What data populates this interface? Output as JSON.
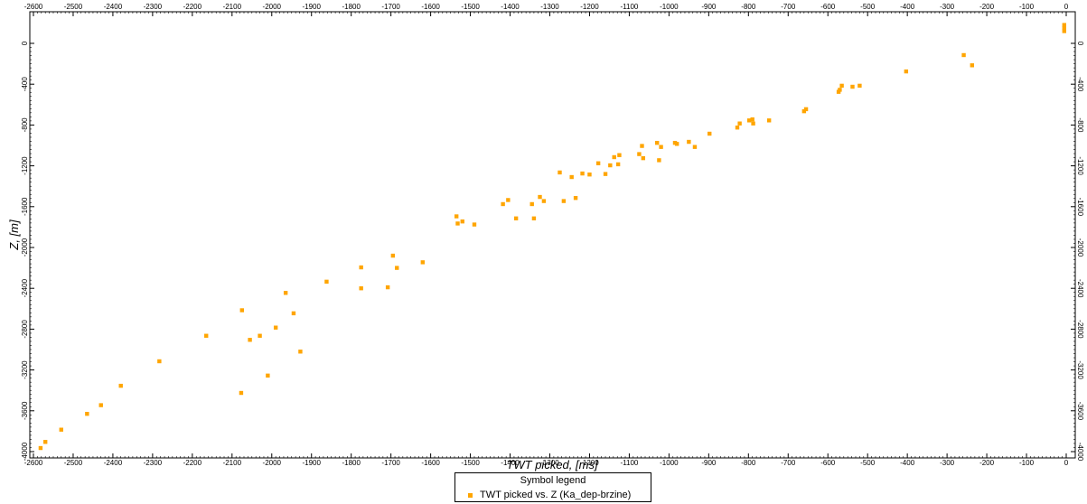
{
  "chart_data": {
    "type": "scatter",
    "xlabel": "TWT picked, [ms]",
    "ylabel": "Z, [m]",
    "xlim": [
      -2600,
      0
    ],
    "ylim": [
      0,
      -4000
    ],
    "x_ticks": [
      -2600,
      -2500,
      -2400,
      -2300,
      -2200,
      -2100,
      -2000,
      -1900,
      -1800,
      -1700,
      -1600,
      -1500,
      -1400,
      -1300,
      -1200,
      -1100,
      -1000,
      -900,
      -800,
      -700,
      -600,
      -500,
      -400,
      -300,
      -200,
      -100,
      0
    ],
    "y_ticks": [
      0,
      -400,
      -800,
      -1200,
      -1600,
      -2000,
      -2400,
      -2800,
      -3200,
      -3600,
      -4000
    ],
    "x_tick_labels": [
      "-2600",
      "-2500",
      "-2400",
      "-2300",
      "-2200",
      "-2100",
      "-2000",
      "-1900",
      "-1800",
      "-1700",
      "-1600",
      "-1500",
      "-1400",
      "-1300",
      "-1200",
      "-1100",
      "-1000",
      "-900",
      "-800",
      "-700",
      "-600",
      "-500",
      "-400",
      "-300",
      "-200",
      "-100",
      "0"
    ],
    "y_tick_labels": [
      "0",
      "-400",
      "-800",
      "-1200",
      "-1600",
      "-2000",
      "-2400",
      "-2800",
      "-3200",
      "-3600",
      "-4000"
    ],
    "marker_color": "#ffa500",
    "grid": false,
    "legend_title": "Symbol legend",
    "series": [
      {
        "name": "TWT picked vs. Z (Ka_dep-brzine)",
        "points": [
          [
            -2582,
            -3965
          ],
          [
            -2570,
            -3905
          ],
          [
            -2530,
            -3785
          ],
          [
            -2465,
            -3630
          ],
          [
            -2430,
            -3545
          ],
          [
            -2380,
            -3355
          ],
          [
            -2283,
            -3115
          ],
          [
            -2165,
            -2865
          ],
          [
            -2075,
            -2615
          ],
          [
            -2077,
            -3425
          ],
          [
            -2055,
            -2905
          ],
          [
            -2030,
            -2865
          ],
          [
            -2010,
            -3255
          ],
          [
            -1990,
            -2785
          ],
          [
            -1965,
            -2445
          ],
          [
            -1945,
            -2645
          ],
          [
            -1928,
            -3020
          ],
          [
            -1862,
            -2335
          ],
          [
            -1775,
            -2195
          ],
          [
            -1775,
            -2400
          ],
          [
            -1708,
            -2390
          ],
          [
            -1695,
            -2080
          ],
          [
            -1685,
            -2200
          ],
          [
            -1620,
            -2145
          ],
          [
            -1535,
            -1695
          ],
          [
            -1532,
            -1765
          ],
          [
            -1520,
            -1745
          ],
          [
            -1490,
            -1775
          ],
          [
            -1418,
            -1575
          ],
          [
            -1405,
            -1535
          ],
          [
            -1385,
            -1715
          ],
          [
            -1345,
            -1575
          ],
          [
            -1340,
            -1715
          ],
          [
            -1325,
            -1505
          ],
          [
            -1315,
            -1545
          ],
          [
            -1275,
            -1265
          ],
          [
            -1265,
            -1545
          ],
          [
            -1245,
            -1310
          ],
          [
            -1235,
            -1515
          ],
          [
            -1218,
            -1275
          ],
          [
            -1200,
            -1285
          ],
          [
            -1178,
            -1175
          ],
          [
            -1160,
            -1280
          ],
          [
            -1148,
            -1195
          ],
          [
            -1138,
            -1115
          ],
          [
            -1128,
            -1185
          ],
          [
            -1125,
            -1095
          ],
          [
            -1075,
            -1085
          ],
          [
            -1068,
            -1005
          ],
          [
            -1065,
            -1125
          ],
          [
            -1030,
            -975
          ],
          [
            -1025,
            -1145
          ],
          [
            -1020,
            -1015
          ],
          [
            -985,
            -975
          ],
          [
            -980,
            -985
          ],
          [
            -950,
            -965
          ],
          [
            -935,
            -1015
          ],
          [
            -898,
            -885
          ],
          [
            -828,
            -825
          ],
          [
            -822,
            -785
          ],
          [
            -798,
            -755
          ],
          [
            -790,
            -745
          ],
          [
            -788,
            -785
          ],
          [
            -748,
            -755
          ],
          [
            -660,
            -665
          ],
          [
            -655,
            -645
          ],
          [
            -573,
            -475
          ],
          [
            -570,
            -455
          ],
          [
            -565,
            -415
          ],
          [
            -538,
            -425
          ],
          [
            -520,
            -415
          ],
          [
            -403,
            -275
          ],
          [
            -258,
            -115
          ],
          [
            -237,
            -215
          ],
          [
            -5,
            120
          ],
          [
            -5,
            150
          ],
          [
            -5,
            180
          ]
        ]
      }
    ]
  }
}
